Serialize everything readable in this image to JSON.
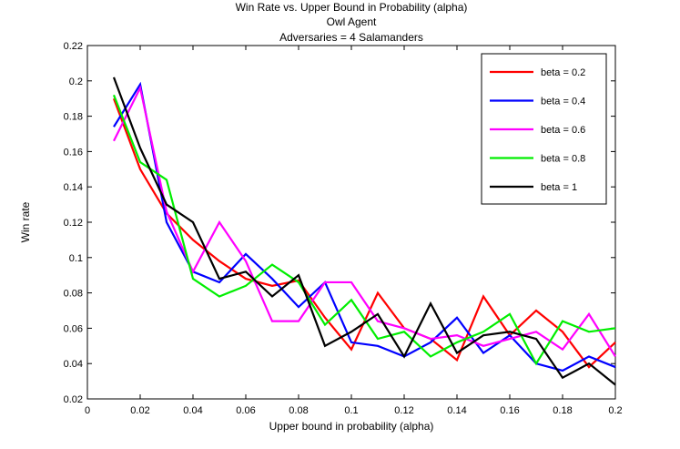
{
  "chart_data": {
    "type": "line",
    "title": [
      "Win Rate vs. Upper Bound in Probability (alpha)",
      "Owl Agent",
      "Adversaries = 4 Salamanders"
    ],
    "xlabel": "Upper bound in probability (alpha)",
    "ylabel": "Win rate",
    "xlim": [
      0,
      0.2
    ],
    "ylim": [
      0.02,
      0.22
    ],
    "xticks": [
      0,
      0.02,
      0.04,
      0.06,
      0.08,
      0.1,
      0.12,
      0.14,
      0.16,
      0.18,
      0.2
    ],
    "xtick_labels": [
      "0",
      "0.02",
      "0.04",
      "0.06",
      "0.08",
      "0.1",
      "0.12",
      "0.14",
      "0.16",
      "0.18",
      "0.2"
    ],
    "yticks": [
      0.02,
      0.04,
      0.06,
      0.08,
      0.1,
      0.12,
      0.14,
      0.16,
      0.18,
      0.2,
      0.22
    ],
    "ytick_labels": [
      "0.02",
      "0.04",
      "0.06",
      "0.08",
      "0.1",
      "0.12",
      "0.14",
      "0.16",
      "0.18",
      "0.2",
      "0.22"
    ],
    "grid": false,
    "legend_position": "top-right",
    "x": [
      0.01,
      0.02,
      0.03,
      0.04,
      0.05,
      0.06,
      0.07,
      0.08,
      0.09,
      0.1,
      0.11,
      0.12,
      0.13,
      0.14,
      0.15,
      0.16,
      0.17,
      0.18,
      0.19,
      0.2
    ],
    "series": [
      {
        "name": "beta = 0.2",
        "color": "#ff0000",
        "values": [
          0.19,
          0.15,
          0.125,
          0.11,
          0.098,
          0.088,
          0.084,
          0.087,
          0.066,
          0.048,
          0.08,
          0.06,
          0.054,
          0.042,
          0.078,
          0.056,
          0.07,
          0.058,
          0.038,
          0.052
        ]
      },
      {
        "name": "beta = 0.4",
        "color": "#0000ff",
        "values": [
          0.174,
          0.198,
          0.12,
          0.092,
          0.086,
          0.102,
          0.088,
          0.072,
          0.086,
          0.052,
          0.05,
          0.044,
          0.052,
          0.066,
          0.046,
          0.056,
          0.04,
          0.036,
          0.044,
          0.038
        ]
      },
      {
        "name": "beta = 0.6",
        "color": "#ff00ff",
        "values": [
          0.166,
          0.196,
          0.126,
          0.092,
          0.12,
          0.098,
          0.064,
          0.064,
          0.086,
          0.086,
          0.064,
          0.06,
          0.054,
          0.056,
          0.05,
          0.054,
          0.058,
          0.048,
          0.068,
          0.044
        ]
      },
      {
        "name": "beta = 0.8",
        "color": "#00ee00",
        "values": [
          0.192,
          0.154,
          0.144,
          0.088,
          0.078,
          0.084,
          0.096,
          0.086,
          0.062,
          0.076,
          0.054,
          0.058,
          0.044,
          0.052,
          0.058,
          0.068,
          0.04,
          0.064,
          0.058,
          0.06
        ]
      },
      {
        "name": "beta = 1",
        "color": "#000000",
        "values": [
          0.202,
          0.162,
          0.13,
          0.12,
          0.088,
          0.092,
          0.078,
          0.09,
          0.05,
          0.058,
          0.068,
          0.044,
          0.074,
          0.046,
          0.056,
          0.058,
          0.054,
          0.032,
          0.04,
          0.028
        ]
      }
    ]
  }
}
